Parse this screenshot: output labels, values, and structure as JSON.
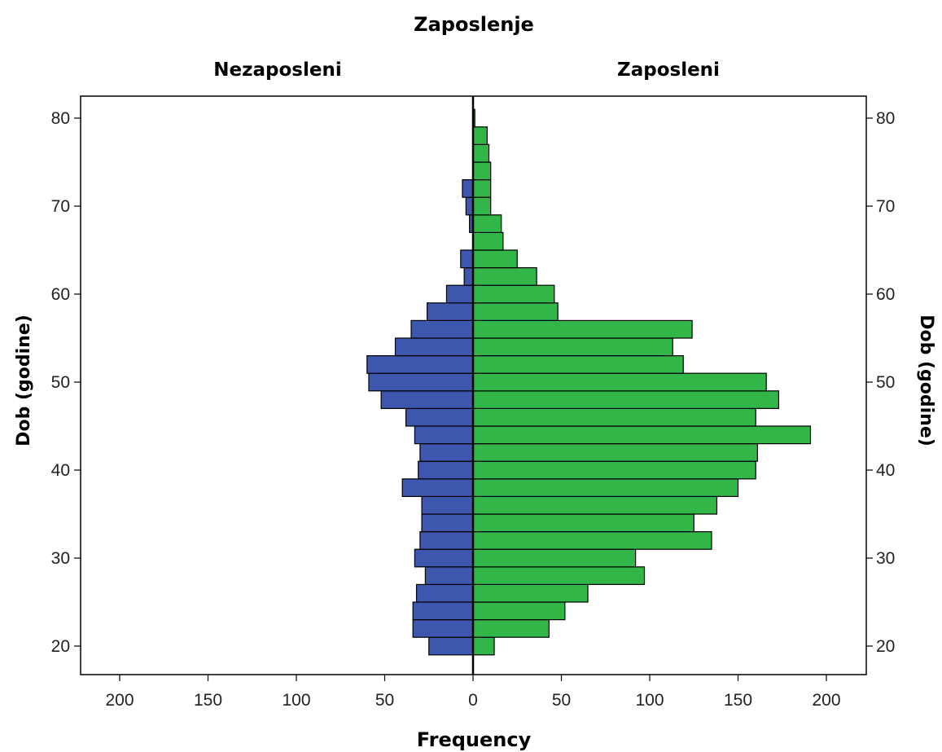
{
  "chart_data": {
    "type": "bar",
    "orientation": "horizontal-back-to-back",
    "title": "Zaposlenje",
    "panels": [
      "Nezaposleni",
      "Zaposleni"
    ],
    "xlabel": "Frequency",
    "ylabel": "Dob (godine)",
    "x_ticks": [
      0,
      50,
      100,
      150,
      200
    ],
    "xlim": [
      0,
      200
    ],
    "y_ticks": [
      20,
      30,
      40,
      50,
      60,
      70,
      80
    ],
    "ylim": [
      17,
      83
    ],
    "bin_width": 2,
    "bin_centers": [
      20,
      22,
      24,
      26,
      28,
      30,
      32,
      34,
      36,
      38,
      40,
      42,
      44,
      46,
      48,
      50,
      52,
      54,
      56,
      58,
      60,
      62,
      64,
      66,
      68,
      70,
      72,
      74,
      76,
      78,
      80
    ],
    "series": [
      {
        "name": "Nezaposleni",
        "color": "#3d56ae",
        "values": [
          25,
          34,
          34,
          32,
          27,
          33,
          30,
          29,
          29,
          40,
          31,
          30,
          33,
          38,
          52,
          59,
          60,
          44,
          35,
          26,
          15,
          5,
          7,
          0,
          2,
          4,
          6,
          0,
          0,
          0,
          0
        ]
      },
      {
        "name": "Zaposleni",
        "color": "#33b648",
        "values": [
          12,
          43,
          52,
          65,
          97,
          92,
          135,
          125,
          138,
          150,
          160,
          161,
          191,
          160,
          173,
          166,
          119,
          113,
          124,
          48,
          46,
          36,
          25,
          17,
          16,
          10,
          10,
          10,
          9,
          8,
          1
        ]
      }
    ]
  }
}
